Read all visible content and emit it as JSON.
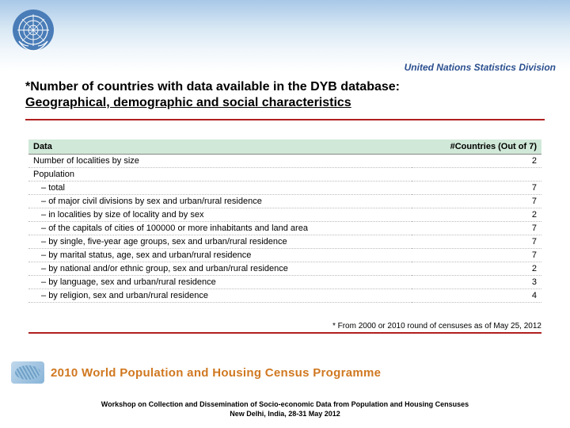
{
  "header": {
    "division": "United Nations Statistics Division"
  },
  "title": {
    "line1": "*Number of countries with data available in the DYB database:",
    "line2": "Geographical, demographic and social characteristics"
  },
  "table": {
    "header_col1": "Data",
    "header_col2": "#Countries (Out of 7)",
    "rows": [
      {
        "label": "Number of localities by size",
        "value": "2",
        "sub": false
      },
      {
        "label": "Population",
        "value": "",
        "sub": false
      },
      {
        "label": "total",
        "value": "7",
        "sub": true
      },
      {
        "label": "of major civil divisions by sex and urban/rural residence",
        "value": "7",
        "sub": true
      },
      {
        "label": "in localities by size of locality and by sex",
        "value": "2",
        "sub": true
      },
      {
        "label": "of the capitals of cities of 100000 or more inhabitants and land area",
        "value": "7",
        "sub": true
      },
      {
        "label": "by single, five-year age groups, sex and urban/rural residence",
        "value": "7",
        "sub": true
      },
      {
        "label": "by marital status, age, sex and urban/rural residence",
        "value": "7",
        "sub": true
      },
      {
        "label": "by national and/or ethnic group, sex and urban/rural residence",
        "value": "2",
        "sub": true
      },
      {
        "label": "by language, sex and urban/rural residence",
        "value": "3",
        "sub": true
      },
      {
        "label": "by religion, sex and urban/rural residence",
        "value": "4",
        "sub": true
      }
    ]
  },
  "footnote": "* From 2000 or 2010 round of censuses as of May 25, 2012",
  "banner": {
    "text": "2010 World Population and Housing Census Programme"
  },
  "footer": {
    "line1": "Workshop on Collection and Dissemination of Socio-economic Data from Population and Housing Censuses",
    "line2": "New Delhi, India, 28-31 May 2012"
  },
  "colors": {
    "red_rule": "#b02020",
    "table_header_bg": "#d0e8d8",
    "banner_text": "#d07820",
    "division_text": "#2a4f8f"
  }
}
